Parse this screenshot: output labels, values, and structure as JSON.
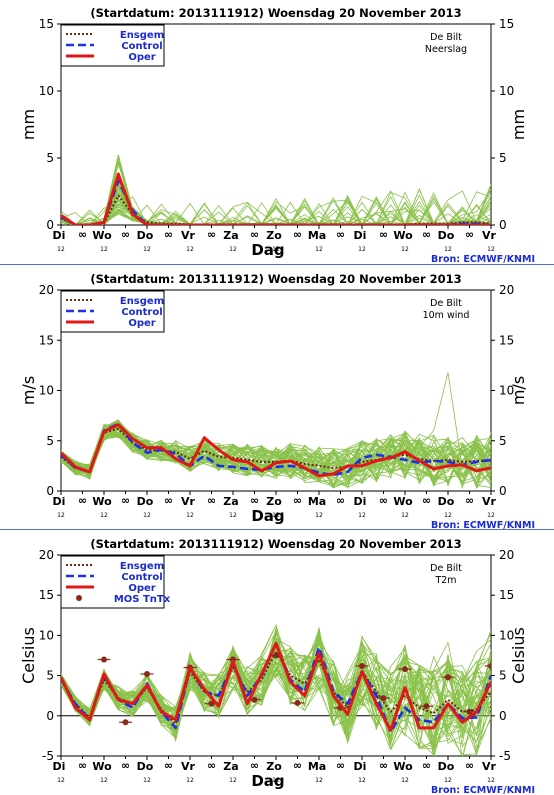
{
  "source_label": "Bron: ECMWF/KNMI",
  "legend_labels": {
    "ensgem": "Ensgem",
    "control": "Control",
    "oper": "Oper",
    "mos": "MOS TnTx"
  },
  "colors": {
    "ensemble": "#8ac24a",
    "ensgem": "#6b2a10",
    "control": "#2030e8",
    "oper": "#e01818",
    "mos": "#8b2a1a",
    "divider": "#5a6ad8",
    "legend_text": "#1a2bd0"
  },
  "x_axis": {
    "label": "Dag",
    "x_range": [
      0,
      30
    ],
    "days": [
      {
        "label": "Di",
        "x": 0,
        "hour": "12"
      },
      {
        "label": "Wo",
        "x": 3,
        "hour": "12"
      },
      {
        "label": "Do",
        "x": 6,
        "hour": "12"
      },
      {
        "label": "Vr",
        "x": 9,
        "hour": "12"
      },
      {
        "label": "Za",
        "x": 12,
        "hour": "12"
      },
      {
        "label": "Zo",
        "x": 15,
        "hour": "12"
      },
      {
        "label": "Ma",
        "x": 18,
        "hour": "12"
      },
      {
        "label": "Di",
        "x": 21,
        "hour": "12"
      },
      {
        "label": "Wo",
        "x": 24,
        "hour": "12"
      },
      {
        "label": "Do",
        "x": 27,
        "hour": "12"
      },
      {
        "label": "Vr",
        "x": 30,
        "hour": "12"
      }
    ],
    "midnight_marks": [
      1.5,
      4.5,
      7.5,
      10.5,
      13.5,
      16.5,
      19.5,
      22.5,
      25.5,
      28.5
    ],
    "midnight_symbol": "∞"
  },
  "chart_data": [
    {
      "type": "line",
      "title": "(Startdatum: 2013111912)   Woensdag  20 November  2013",
      "station": "De Bilt",
      "variable": "Neerslag",
      "ylabel": "mm",
      "ylim": [
        0,
        15
      ],
      "yticks": [
        0,
        5,
        10,
        15
      ],
      "series": [
        {
          "name": "Ensgem",
          "values": [
            0.5,
            0,
            0,
            0.1,
            2.2,
            0.8,
            0.2,
            0.1,
            0.1,
            0.05,
            0.05,
            0.05,
            0.05,
            0.05,
            0.05,
            0.05,
            0.05,
            0.05,
            0.05,
            0.05,
            0.05,
            0.05,
            0.05,
            0.05,
            0.05,
            0.1,
            0.1,
            0.1,
            0.2,
            0.2,
            0.1
          ]
        },
        {
          "name": "Control",
          "values": [
            0.6,
            0,
            0,
            0.2,
            3.3,
            1.1,
            0,
            0,
            0,
            0,
            0,
            0,
            0,
            0,
            0,
            0,
            0,
            0,
            0,
            0,
            0,
            0,
            0,
            0,
            0,
            0,
            0,
            0,
            0.1,
            0.1,
            0
          ]
        },
        {
          "name": "Oper",
          "values": [
            0.7,
            0,
            0,
            0.2,
            3.8,
            0.8,
            0,
            0,
            0,
            0,
            0,
            0,
            0,
            0,
            0,
            0,
            0,
            0,
            0,
            0,
            0,
            0,
            0,
            0,
            0,
            0,
            0,
            0,
            0,
            0,
            0
          ]
        }
      ],
      "ensemble": {
        "seed": 11,
        "members": 50,
        "mode": "precip"
      }
    },
    {
      "type": "line",
      "title": "(Startdatum: 2013111912)   Woensdag  20 November  2013",
      "station": "De Bilt",
      "variable": "10m wind",
      "ylabel": "m/s",
      "ylim": [
        0,
        20
      ],
      "yticks": [
        0,
        5,
        10,
        15,
        20
      ],
      "series": [
        {
          "name": "Ensgem",
          "values": [
            3.4,
            2.3,
            1.9,
            5.8,
            6.2,
            4.8,
            4.1,
            4.0,
            3.9,
            3.2,
            4.0,
            3.4,
            3.3,
            3.1,
            2.9,
            2.9,
            3.0,
            2.7,
            2.5,
            2.3,
            2.4,
            2.9,
            3.1,
            3.4,
            3.6,
            3.2,
            3.0,
            3.1,
            2.9,
            3.0,
            3.0
          ]
        },
        {
          "name": "Control",
          "values": [
            3.6,
            2.3,
            1.9,
            6.0,
            6.7,
            4.8,
            3.8,
            4.1,
            3.7,
            2.5,
            3.5,
            2.5,
            2.4,
            2.2,
            2.1,
            2.4,
            2.5,
            2.3,
            1.8,
            1.6,
            1.9,
            3.3,
            3.6,
            3.4,
            3.1,
            2.8,
            3.0,
            2.9,
            2.6,
            2.9,
            3.1
          ]
        },
        {
          "name": "Oper",
          "values": [
            3.8,
            2.4,
            1.9,
            5.9,
            6.6,
            5.2,
            4.3,
            4.3,
            3.2,
            2.5,
            5.3,
            4.1,
            3.1,
            2.9,
            2.0,
            2.8,
            3.0,
            2.3,
            1.5,
            1.7,
            2.5,
            2.5,
            3.0,
            3.3,
            3.9,
            3.0,
            2.2,
            2.5,
            2.6,
            2.0,
            2.3
          ]
        }
      ],
      "ensemble": {
        "seed": 23,
        "members": 50,
        "mode": "wind"
      }
    },
    {
      "type": "line",
      "title": "(Startdatum: 2013111912)   Woensdag  20 November  2013",
      "station": "De Bilt",
      "variable": "T2m",
      "ylabel": "Celsius",
      "ylim": [
        -5,
        20
      ],
      "yticks": [
        -5,
        0,
        5,
        10,
        15,
        20
      ],
      "zero_line": true,
      "series": [
        {
          "name": "Ensgem",
          "values": [
            4.5,
            1.5,
            -0.2,
            4.5,
            2.2,
            1.5,
            3.5,
            0.8,
            -1.0,
            5.5,
            3.0,
            2.5,
            6.0,
            3.0,
            4.5,
            8.0,
            5.0,
            4.0,
            7.0,
            3.0,
            1.0,
            5.5,
            3.0,
            0.5,
            2.5,
            1.0,
            0.3,
            2.0,
            0.5,
            0.8,
            3.0
          ]
        },
        {
          "name": "Control",
          "values": [
            4.5,
            1.5,
            -0.5,
            5.0,
            2.0,
            1.0,
            4.0,
            0.5,
            -1.5,
            6.0,
            3.0,
            2.5,
            6.5,
            2.5,
            5.0,
            9.0,
            4.5,
            3.0,
            8.5,
            3.0,
            1.5,
            5.5,
            2.5,
            -2.0,
            1.0,
            -0.5,
            -0.8,
            1.5,
            -0.3,
            -0.2,
            5.0
          ]
        },
        {
          "name": "Oper",
          "values": [
            4.8,
            1.0,
            -0.5,
            5.2,
            2.0,
            1.5,
            3.8,
            0.5,
            -0.5,
            6.0,
            3.3,
            1.2,
            6.8,
            1.5,
            5.2,
            9.0,
            4.2,
            2.5,
            7.8,
            2.5,
            0.2,
            5.5,
            1.5,
            -1.8,
            3.5,
            -1.5,
            -1.5,
            1.5,
            -0.8,
            0.5,
            4.2
          ]
        }
      ],
      "mos": [
        {
          "x": 3,
          "value": 7.0,
          "err": 1.2
        },
        {
          "x": 4.5,
          "value": -0.8,
          "err": 0.9
        },
        {
          "x": 6,
          "value": 5.2,
          "err": 1.1
        },
        {
          "x": 9,
          "value": 6.0,
          "err": 1.3
        },
        {
          "x": 10.5,
          "value": 1.5,
          "err": 1.0
        },
        {
          "x": 12,
          "value": 7.0,
          "err": 1.2
        },
        {
          "x": 13.5,
          "value": 2.0,
          "err": 1.1
        },
        {
          "x": 15,
          "value": 7.5,
          "err": 1.4
        },
        {
          "x": 16.5,
          "value": 1.6,
          "err": 1.2
        },
        {
          "x": 19.5,
          "value": 1.0,
          "err": 1.3
        },
        {
          "x": 21,
          "value": 6.2,
          "err": 1.4
        },
        {
          "x": 22.5,
          "value": 2.2,
          "err": 1.2
        },
        {
          "x": 24,
          "value": 5.8,
          "err": 1.4
        },
        {
          "x": 25.5,
          "value": 1.2,
          "err": 1.3
        },
        {
          "x": 27,
          "value": 4.8,
          "err": 1.5
        },
        {
          "x": 28.5,
          "value": 0.5,
          "err": 1.3
        },
        {
          "x": 30,
          "value": 6.2,
          "err": 1.5
        }
      ],
      "ensemble": {
        "seed": 37,
        "members": 50,
        "mode": "temp"
      }
    }
  ]
}
